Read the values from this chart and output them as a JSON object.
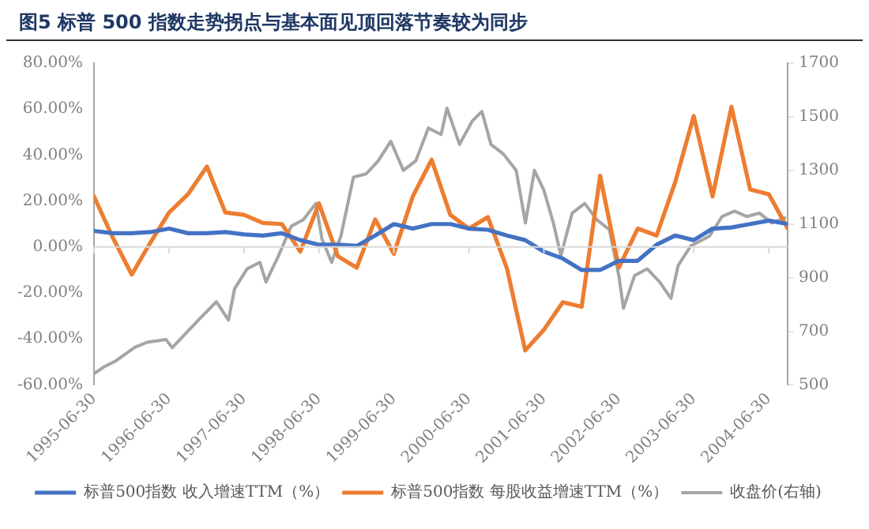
{
  "chart_data": {
    "type": "line",
    "title": "图5 标普 500 指数走势拐点与基本面见顶回落节奏较为同步",
    "xlim": [
      "1995-06-30",
      "2004-09-30"
    ],
    "xticks": [
      "1995-06-30",
      "1996-06-30",
      "1997-06-30",
      "1998-06-30",
      "1999-06-30",
      "2000-06-30",
      "2001-06-30",
      "2002-06-30",
      "2003-06-30",
      "2004-06-30"
    ],
    "ylim": [
      -60,
      80
    ],
    "yticks": [
      {
        "value": -60,
        "label": "-60.00%"
      },
      {
        "value": -40,
        "label": "-40.00%"
      },
      {
        "value": -20,
        "label": "-20.00%"
      },
      {
        "value": 0,
        "label": "0.00%"
      },
      {
        "value": 20,
        "label": "20.00%"
      },
      {
        "value": 40,
        "label": "40.00%"
      },
      {
        "value": 60,
        "label": "60.00%"
      },
      {
        "value": 80,
        "label": "80.00%"
      }
    ],
    "y2lim": [
      500,
      1700
    ],
    "y2ticks": [
      500,
      700,
      900,
      1100,
      1300,
      1500,
      1700
    ],
    "legend": "bottom",
    "grid": false,
    "ref_lines": [
      {
        "axis": "y",
        "value": 0,
        "color": "#d9d9d9"
      }
    ],
    "marker": "none",
    "line_style": "solid",
    "series": [
      {
        "name": "标普500指数 收入增速TTM（%）",
        "color": "#4472c4",
        "x": [
          "1995-06-30",
          "1995-09-30",
          "1995-12-31",
          "1996-03-31",
          "1996-06-30",
          "1996-09-30",
          "1996-12-31",
          "1997-03-31",
          "1997-06-30",
          "1997-09-30",
          "1997-12-31",
          "1998-03-31",
          "1998-06-30",
          "1998-09-30",
          "1998-12-31",
          "1999-03-31",
          "1999-06-30",
          "1999-09-30",
          "1999-12-31",
          "2000-03-31",
          "2000-06-30",
          "2000-09-30",
          "2000-12-31",
          "2001-03-31",
          "2001-06-30",
          "2001-09-30",
          "2001-12-31",
          "2002-03-31",
          "2002-06-30",
          "2002-09-30",
          "2002-12-31",
          "2003-03-31",
          "2003-06-30",
          "2003-09-30",
          "2003-12-31",
          "2004-03-31",
          "2004-06-30",
          "2004-09-30"
        ],
        "values": [
          7,
          6,
          6,
          6.5,
          8,
          6,
          6,
          6.5,
          5.5,
          5,
          6,
          3,
          1,
          1,
          0.5,
          5,
          10,
          8,
          10,
          10,
          8,
          7.5,
          5,
          3,
          -2,
          -5,
          -10,
          -10,
          -6,
          -6,
          1,
          5,
          3,
          8,
          8.5,
          10,
          11.5,
          10
        ]
      },
      {
        "name": "标普500指数 每股收益增速TTM（%）",
        "color": "#ed7d31",
        "x": [
          "1995-06-30",
          "1995-09-30",
          "1995-12-31",
          "1996-03-31",
          "1996-06-30",
          "1996-09-30",
          "1996-12-31",
          "1997-03-31",
          "1997-06-30",
          "1997-09-30",
          "1997-12-31",
          "1998-03-31",
          "1998-06-30",
          "1998-09-30",
          "1998-12-31",
          "1999-03-31",
          "1999-06-30",
          "1999-09-30",
          "1999-12-31",
          "2000-03-31",
          "2000-06-30",
          "2000-09-30",
          "2000-12-31",
          "2001-03-31",
          "2001-06-30",
          "2001-09-30",
          "2001-12-31",
          "2002-03-31",
          "2002-06-30",
          "2002-09-30",
          "2002-12-31",
          "2003-03-31",
          "2003-06-30",
          "2003-09-30",
          "2003-12-31",
          "2004-03-31",
          "2004-06-30",
          "2004-09-30"
        ],
        "values": [
          22,
          4,
          -12,
          2,
          15,
          23,
          35,
          15,
          14,
          10.5,
          10,
          -2,
          19,
          -4,
          -9,
          12,
          -3,
          22,
          38,
          14,
          8,
          13,
          -9,
          -45,
          -36,
          -24,
          -26,
          31,
          -9,
          8,
          5,
          28,
          57,
          22,
          61,
          25,
          23,
          8
        ]
      },
      {
        "name": "收盘价(右轴)",
        "color": "#a5a5a5",
        "axis": "y2",
        "x": [
          "1995-06-30",
          "1995-08-15",
          "1995-10-15",
          "1996-01-15",
          "1996-03-15",
          "1996-06-15",
          "1996-07-15",
          "1996-10-15",
          "1996-12-15",
          "1997-02-15",
          "1997-04-15",
          "1997-05-15",
          "1997-07-15",
          "1997-09-15",
          "1997-10-15",
          "1997-12-15",
          "1998-02-15",
          "1998-04-15",
          "1998-06-15",
          "1998-07-15",
          "1998-08-31",
          "1998-10-15",
          "1998-12-15",
          "1999-02-15",
          "1999-04-15",
          "1999-06-15",
          "1999-08-15",
          "1999-10-15",
          "1999-12-15",
          "2000-02-15",
          "2000-03-15",
          "2000-05-15",
          "2000-07-15",
          "2000-09-01",
          "2000-10-15",
          "2000-12-15",
          "2001-02-15",
          "2001-04-01",
          "2001-05-15",
          "2001-06-30",
          "2001-08-15",
          "2001-09-21",
          "2001-11-15",
          "2002-01-15",
          "2002-03-15",
          "2002-05-15",
          "2002-06-30",
          "2002-07-23",
          "2002-09-15",
          "2002-11-15",
          "2003-01-15",
          "2003-03-11",
          "2003-04-15",
          "2003-06-15",
          "2003-09-15",
          "2003-11-15",
          "2004-01-15",
          "2004-03-15",
          "2004-05-15",
          "2004-07-15",
          "2004-09-15"
        ],
        "values": [
          542,
          566,
          590,
          640,
          659,
          669,
          639,
          713,
          762,
          810,
          742,
          859,
          933,
          957,
          884,
          982,
          1092,
          1116,
          1177,
          1043,
          957,
          1055,
          1275,
          1287,
          1336,
          1409,
          1300,
          1336,
          1458,
          1434,
          1532,
          1397,
          1483,
          1520,
          1397,
          1361,
          1300,
          1104,
          1300,
          1226,
          1104,
          982,
          1141,
          1177,
          1116,
          1079,
          908,
          786,
          908,
          933,
          884,
          823,
          945,
          1018,
          1055,
          1128,
          1148,
          1128,
          1141,
          1104,
          1123
        ]
      }
    ]
  }
}
